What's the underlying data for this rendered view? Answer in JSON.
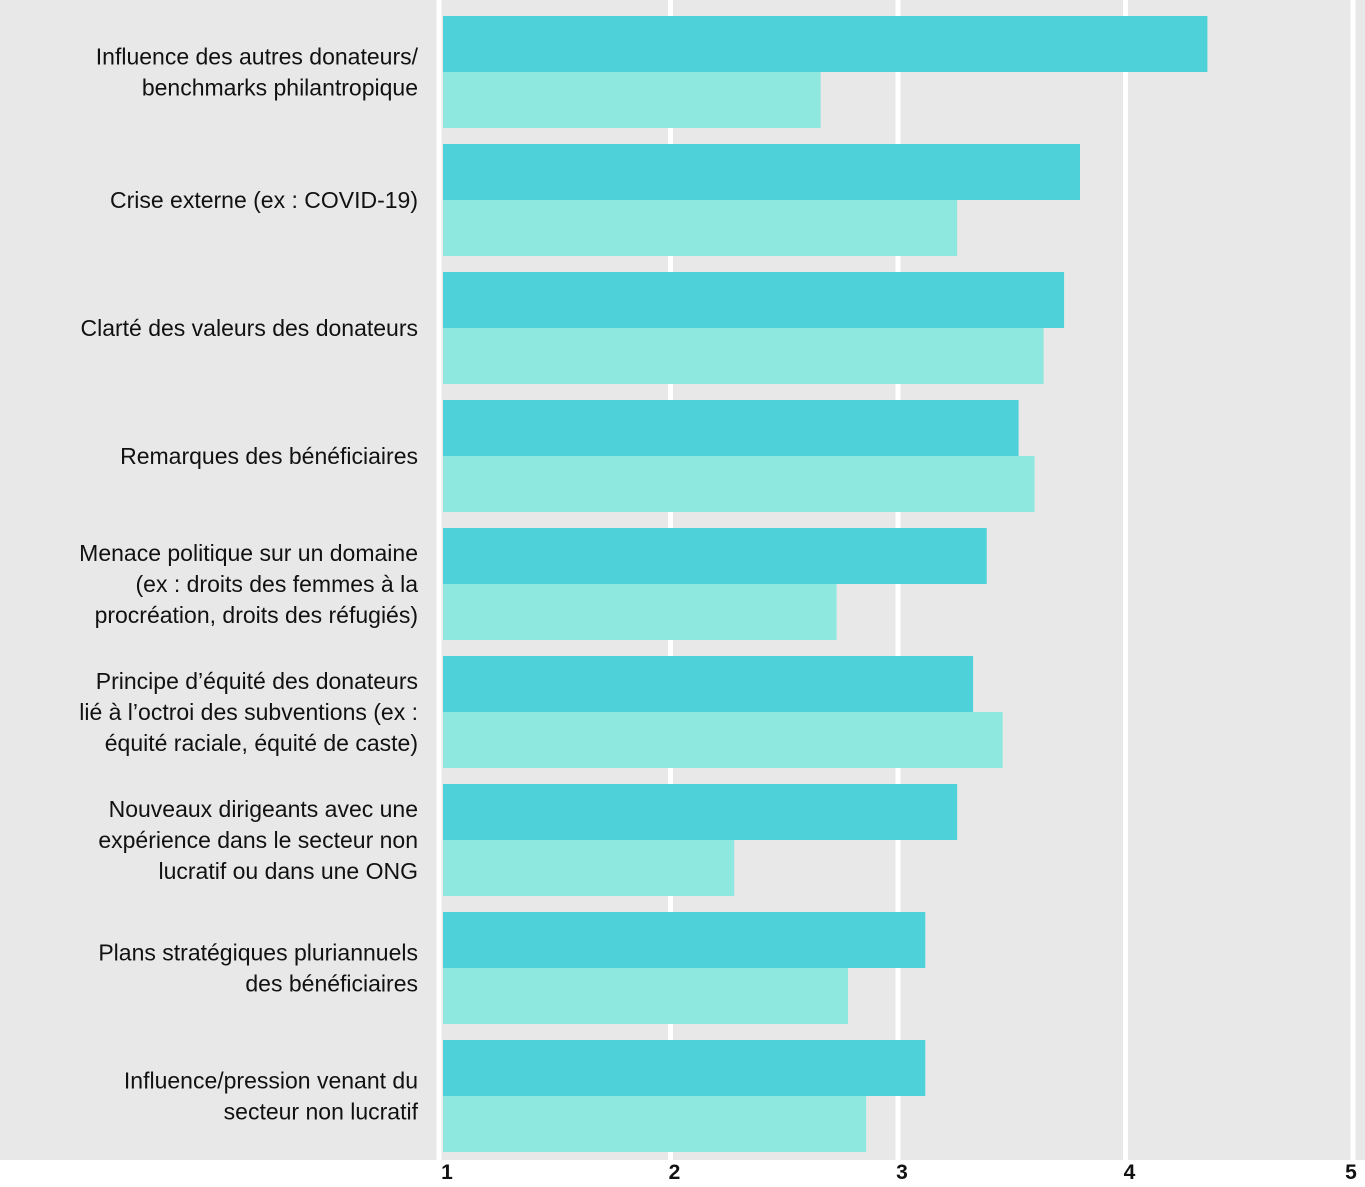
{
  "chart_data": {
    "type": "bar",
    "orientation": "horizontal",
    "categories": [
      [
        "Influence des autres donateurs/",
        "benchmarks philantropique"
      ],
      [
        "Crise externe (ex : COVID-19)"
      ],
      [
        "Clarté des valeurs des donateurs"
      ],
      [
        "Remarques des bénéficiaires"
      ],
      [
        "Menace politique sur un domaine",
        "(ex : droits des femmes à la",
        "procréation, droits des réfugiés)"
      ],
      [
        "Principe d’équité des donateurs",
        "lié à l’octroi des subventions (ex :",
        "équité raciale, équité de caste)"
      ],
      [
        "Nouveaux dirigeants avec une",
        "expérience dans le secteur non",
        "lucratif ou dans une ONG"
      ],
      [
        "Plans stratégiques pluriannuels",
        "des bénéficiaires"
      ],
      [
        "Influence/pression venant du",
        "secteur non lucratif"
      ]
    ],
    "series": [
      {
        "color": "#4fd1d9",
        "values": [
          4.36,
          3.8,
          3.73,
          3.53,
          3.39,
          3.33,
          3.26,
          3.12,
          3.12
        ]
      },
      {
        "color": "#8ee8df",
        "values": [
          2.66,
          3.26,
          3.64,
          3.6,
          2.73,
          3.46,
          2.28,
          2.78,
          2.86
        ]
      }
    ],
    "xlim": [
      1,
      5
    ],
    "xticks": [
      1,
      2,
      3,
      4,
      5
    ],
    "xtick_labels": [
      "1",
      "2",
      "3",
      "4",
      "5"
    ],
    "grid": true,
    "background_color": "#e8e8e8",
    "title": "",
    "xlabel": "",
    "ylabel": ""
  }
}
